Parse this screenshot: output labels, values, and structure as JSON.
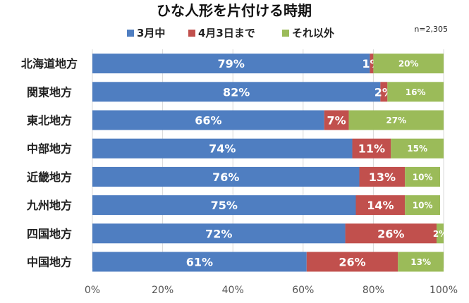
{
  "chart_data": {
    "type": "bar",
    "orientation": "horizontal",
    "stacked": true,
    "title": "ひな人形を片付ける時期",
    "note": "n=2,305",
    "categories": [
      "北海道地方",
      "関東地方",
      "東北地方",
      "中部地方",
      "近畿地方",
      "九州地方",
      "四国地方",
      "中国地方"
    ],
    "series": [
      {
        "name": "3月中",
        "color": "#4f7ec1",
        "values": [
          79,
          82,
          66,
          74,
          76,
          75,
          72,
          61
        ]
      },
      {
        "name": "4月3日まで",
        "color": "#c1504d",
        "values": [
          1,
          2,
          7,
          11,
          13,
          14,
          26,
          26
        ]
      },
      {
        "name": "それ以外",
        "color": "#9bbb59",
        "values": [
          20,
          16,
          27,
          15,
          10,
          10,
          2,
          13
        ]
      }
    ],
    "xlim": [
      0,
      100
    ],
    "xticks": [
      "0%",
      "20%",
      "40%",
      "60%",
      "80%",
      "100%"
    ],
    "legend_position": "top",
    "grid": true
  }
}
